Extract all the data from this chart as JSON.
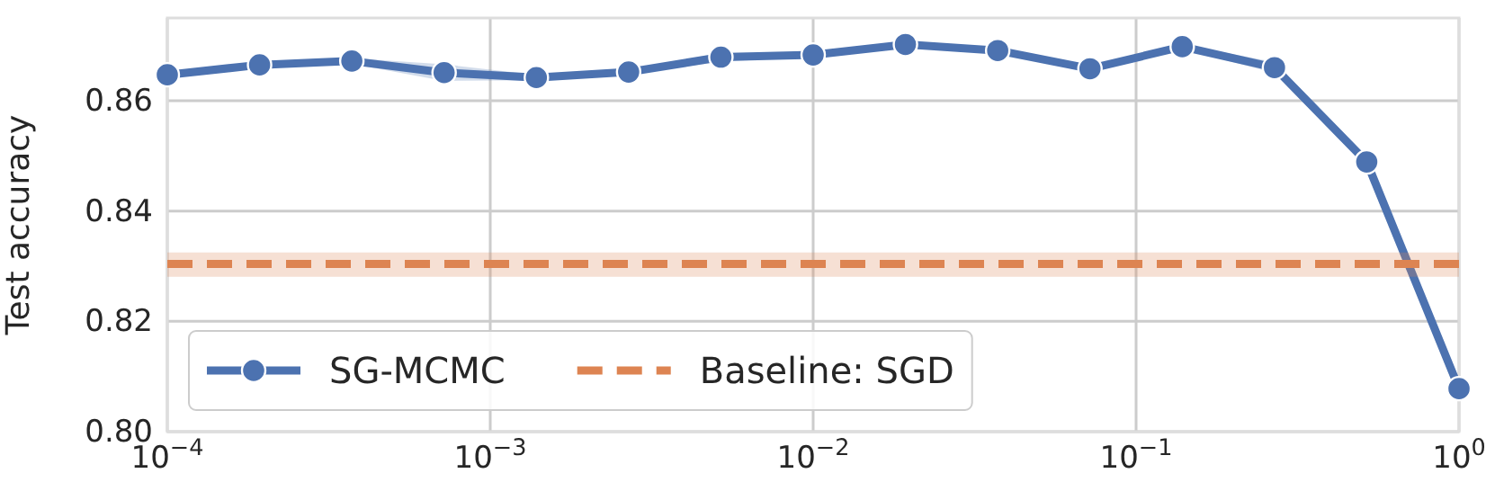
{
  "chart_data": {
    "type": "line",
    "ylabel": "Test accuracy",
    "log": "x",
    "x": [
      0.0001,
      0.00019307,
      0.00037276,
      0.00071969,
      0.0013895,
      0.0026827,
      0.0051795,
      0.01,
      0.019307,
      0.037276,
      0.071969,
      0.13895,
      0.26827,
      0.51795,
      1
    ],
    "series": [
      {
        "name": "SG-MCMC",
        "color": "#4c72b0",
        "marker": "circle",
        "line_style": "solid",
        "values": [
          0.8647,
          0.8665,
          0.8672,
          0.8651,
          0.8642,
          0.8652,
          0.8679,
          0.8683,
          0.8702,
          0.8691,
          0.8658,
          0.8698,
          0.866,
          0.8489,
          0.8078
        ],
        "lower": [
          0.8642,
          0.8661,
          0.8667,
          0.8636,
          0.8637,
          0.8648,
          0.8671,
          0.8679,
          0.8698,
          0.8687,
          0.8654,
          0.8694,
          0.865,
          0.8479,
          0.8063
        ],
        "upper": [
          0.8652,
          0.8669,
          0.8677,
          0.8666,
          0.8647,
          0.8656,
          0.8687,
          0.8687,
          0.8706,
          0.8695,
          0.8662,
          0.8702,
          0.867,
          0.8499,
          0.8093
        ]
      },
      {
        "name": "Baseline: SGD",
        "color": "#dd8452",
        "marker": "none",
        "line_style": "dashed",
        "x": [
          0.0001,
          1
        ],
        "values": [
          0.8304,
          0.8304
        ],
        "lower": [
          0.8281,
          0.8281
        ],
        "upper": [
          0.8325,
          0.8325
        ]
      }
    ],
    "xlim": [
      0.0001,
      1
    ],
    "ylim": [
      0.8,
      0.875
    ],
    "xticks": [
      {
        "value": 0.0001,
        "label": "10$^{−4}$"
      },
      {
        "value": 0.001,
        "label": "10$^{−3}$"
      },
      {
        "value": 0.01,
        "label": "10$^{−2}$"
      },
      {
        "value": 0.1,
        "label": "10$^{−1}$"
      },
      {
        "value": 1,
        "label": "10$^{0}$"
      }
    ],
    "yticks": [
      {
        "value": 0.8,
        "label": "0.80"
      },
      {
        "value": 0.82,
        "label": "0.82"
      },
      {
        "value": 0.84,
        "label": "0.84"
      },
      {
        "value": 0.86,
        "label": "0.86"
      }
    ],
    "grid": true,
    "legend": "bottom left"
  }
}
